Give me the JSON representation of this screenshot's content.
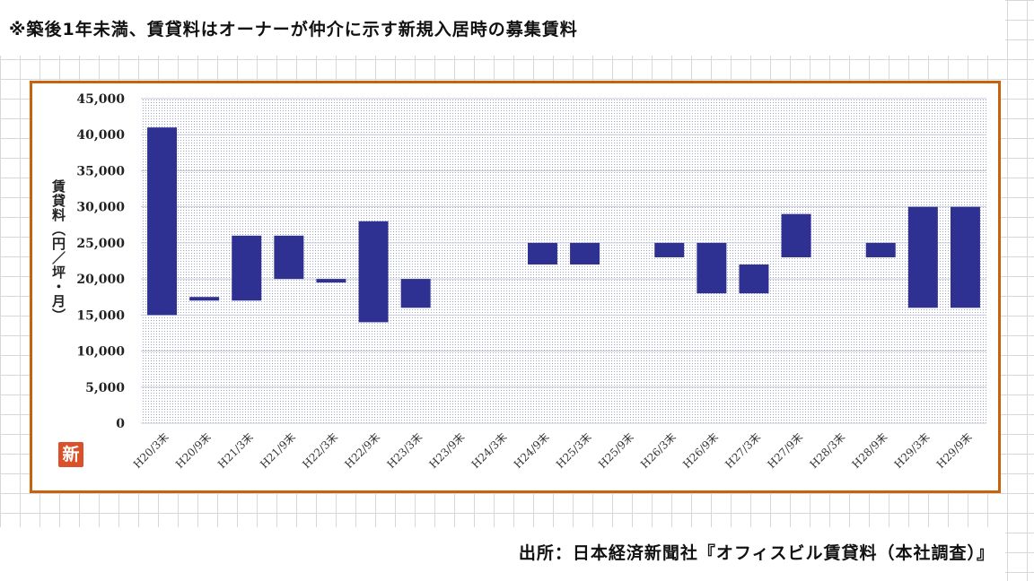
{
  "note": "※築後1年未満、賃貸料はオーナーが仲介に示す新規入居時の募集賃料",
  "source": "出所：日本経済新聞社『オフィスビル賃貸料（本社調査）』",
  "stamp": "新",
  "colors": {
    "bar": "#2e3192",
    "frame": "#c8620c",
    "plot_dots": "#9aa3c8"
  },
  "chart_data": {
    "type": "bar",
    "subtype": "floating-range",
    "ylabel": "賃貸料（円／坪・月）",
    "ylim": [
      0,
      45000
    ],
    "ytick_step": 5000,
    "ytick_labels": [
      "0",
      "5,000",
      "10,000",
      "15,000",
      "20,000",
      "25,000",
      "30,000",
      "35,000",
      "40,000",
      "45,000"
    ],
    "grid": true,
    "categories": [
      "H20/3末",
      "H20/9末",
      "H21/3末",
      "H21/9末",
      "H22/3末",
      "H22/9末",
      "H23/3末",
      "H23/9末",
      "H24/3末",
      "H24/9末",
      "H25/3末",
      "H25/9末",
      "H26/3末",
      "H26/9末",
      "H27/3末",
      "H27/9末",
      "H28/3末",
      "H28/9末",
      "H29/3末",
      "H29/9末"
    ],
    "ranges": [
      [
        15000,
        41000
      ],
      [
        17000,
        17500
      ],
      [
        17000,
        26000
      ],
      [
        20000,
        26000
      ],
      [
        19500,
        20000
      ],
      [
        14000,
        28000
      ],
      [
        16000,
        20000
      ],
      null,
      null,
      [
        22000,
        25000
      ],
      [
        22000,
        25000
      ],
      null,
      [
        23000,
        25000
      ],
      [
        18000,
        25000
      ],
      [
        18000,
        22000
      ],
      [
        23000,
        29000
      ],
      null,
      [
        23000,
        25000
      ],
      [
        16000,
        30000
      ],
      [
        16000,
        30000
      ]
    ]
  }
}
